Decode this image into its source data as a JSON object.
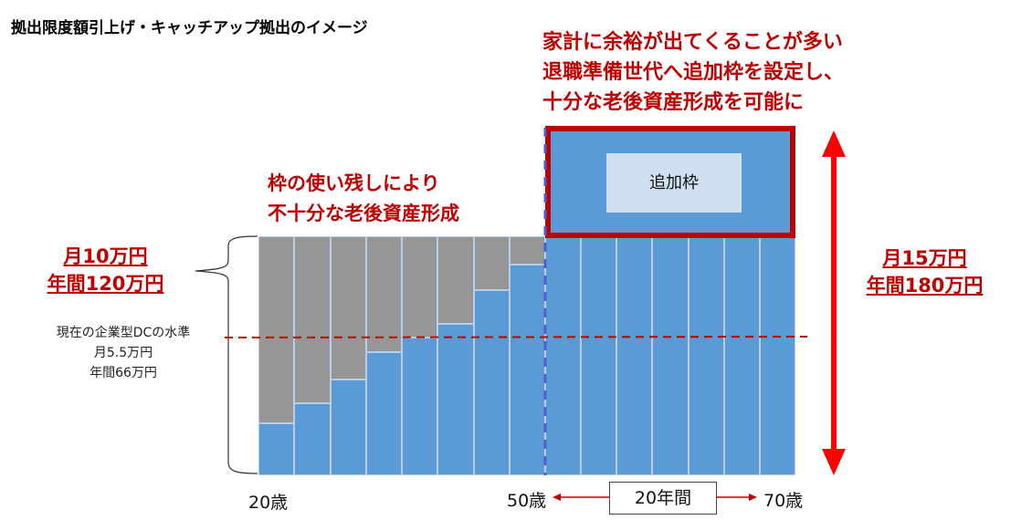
{
  "title": "拠出限度額引上げ・キャッチアップ拠出のイメージ",
  "headline": [
    "家計に余裕が出てくることが多い",
    "退職準備世代へ追加枠を設定し、",
    "十分な老後資産形成を可能に"
  ],
  "midline": [
    "枠の使い残しにより",
    "不十分な老後資産形成"
  ],
  "left_limit": {
    "monthly": "月10万円",
    "annual": "年間120万円"
  },
  "right_limit": {
    "monthly": "月15万円",
    "annual": "年間180万円"
  },
  "current_level": {
    "label": "現在の企業型DCの水準",
    "monthly": "月5.5万円",
    "annual": "年間66万円",
    "value": 66
  },
  "extra_label": "追加枠",
  "ages": {
    "start": "20歳",
    "mid": "50歳",
    "end": "70歳"
  },
  "period_label": "20年間",
  "colors": {
    "blue": "#5b9bd5",
    "gray": "#969696",
    "red": "#c00000",
    "arrow": "#ff0000",
    "dash_blue": "#4a5fd0"
  },
  "chart_data": {
    "type": "bar",
    "unit": "万円/年",
    "limit_before_50": 120,
    "limit_after_50": 180,
    "contributions_20_to_50": [
      26,
      36,
      48,
      62,
      69,
      76,
      93,
      106
    ],
    "contributions_50_to_70": [
      180,
      180,
      180,
      180,
      180,
      180,
      180
    ]
  }
}
